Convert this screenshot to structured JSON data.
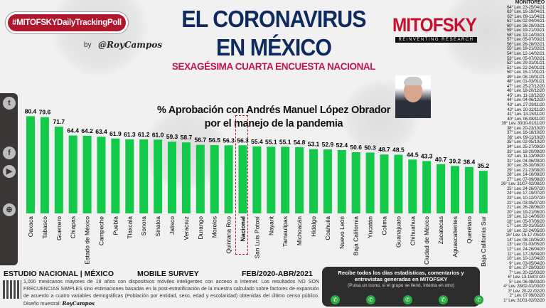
{
  "header": {
    "hashtag": "#MITOFSKYDailyTrackingPoll",
    "by": "by",
    "author": "@RoyCampos",
    "title_line1": "EL CORONAVIRUS",
    "title_line2": "EN MÉXICO",
    "subtitle": "SEXAGÉSIMA CUARTA ENCUESTA NACIONAL",
    "brand": "MITOFSKY",
    "brand_tagline": "REINVENTING RESEARCH"
  },
  "sidebar": {
    "icons": [
      "twitter-icon",
      "facebook-icon",
      "youtube-icon",
      "web-icon"
    ]
  },
  "chart_data": {
    "type": "bar",
    "title_line1": "% Aprobación con Andrés Manuel López Obrador",
    "title_line2": "por el manejo de la pandemia",
    "categories": [
      "Oaxaca",
      "Tabasco",
      "Guerrero",
      "Chiapas",
      "Estado de México",
      "Campeche",
      "Puebla",
      "Tlaxcala",
      "Sonora",
      "Sinaloa",
      "Jalisco",
      "Veracruz",
      "Durango",
      "Morelos",
      "Quintana Roo",
      "Nacional",
      "San Luis Potosí",
      "Nayarit",
      "Tamaulipas",
      "Michoacán",
      "Hidalgo",
      "Coahuila",
      "Nuevo León",
      "Baja California",
      "Yucatán",
      "Colima",
      "Guanajuato",
      "Chihuahua",
      "Ciudad de México",
      "Zacatecas",
      "Aguascalientes",
      "Querétaro",
      "Baja California Sur"
    ],
    "values": [
      80.4,
      79.6,
      71.7,
      64.4,
      64.2,
      63.4,
      61.9,
      61.3,
      61.2,
      61.0,
      59.3,
      58.7,
      56.7,
      56.5,
      56.3,
      56.3,
      55.4,
      55.1,
      55.1,
      54.8,
      53.1,
      52.9,
      52.4,
      50.6,
      50.3,
      48.7,
      48.5,
      44.5,
      43.3,
      40.7,
      39.2,
      38.4,
      35.2
    ],
    "value_labels": [
      "80.4",
      "79.6",
      "71.7",
      "64.4",
      "64.2",
      "63.4",
      "61.9",
      "61.3",
      "61.2",
      "61.0",
      "59.3",
      "58.7",
      "56.7",
      "56.5",
      "56.3",
      "56.3",
      "55.4",
      "55.1",
      "55.1",
      "54.8",
      "53.1",
      "52.9",
      "52.4",
      "50.6",
      "50.3",
      "48.7",
      "48.5",
      "44.5",
      "43.3",
      "40.7",
      "39.2",
      "38.4",
      "35.2"
    ],
    "highlight": "Nacional",
    "bar_color": "#12c94a",
    "highlight_color": "#c0172f",
    "ylim": [
      0,
      85
    ],
    "grid": false
  },
  "monitoreo": {
    "heading": "MONITOREO",
    "highlighted": [
      39,
      26
    ],
    "items": [
      "64° Lev. 23-25/04/21",
      "63° Lev. 16-18/04/21",
      "62° Lev. 09-11/04/21",
      "61° Lev. 02-04/04/21",
      "60° Lev. 26-28/03/21",
      "59° Lev. 19-21/03/21",
      "58° Lev. 12-14/03/21",
      "57° Lev. 05-07/03/21",
      "56° Lev. 26-28/02/21",
      "55° Lev. 19-21/02/21",
      "54° Lev. 12-14/02/21",
      "53° Lev. 05-07/02/21",
      "52° Lev. 29-31/01/21",
      "51° Lev. 22-24/01/21",
      "50° Lev. 15-17/01/21",
      "49° Lev. 08-10/01/21",
      "48° Lev. 01-03/01/21",
      "47° Lev. 25-27/12/20",
      "46° Lev. 18-20/12/20",
      "45° Lev. 11-13/12/20",
      "44° Lev. 04-06/12/20",
      "43° Lev. 27-29/11/20",
      "42° Lev. 20-22/11/20",
      "41° Lev. 13-15/11/20",
      "40° Lev. 06-08/11/20",
      "39° Lev. 30/10-01/11/20",
      "38° Lev. 20-23/10/20",
      "37° Lev. 16-18/10/20",
      "36° Lev. 09-11/10/20",
      "35° Lev. 02-05/10/20",
      "34° Lev. 25-27/09/20",
      "33° Lev. 18-20/09/20",
      "32° Lev. 11-13/09/20",
      "31° Lev. 04-06/09/20",
      "30° Lev. 28-30/08/20",
      "29° Lev. 21-23/08/20",
      "28° Lev. 14-16/08/20",
      "27° Lev. 07-09/08/20",
      "26° Lev. 31/07-02/08/20",
      "25° Lev. 24-26/07/20",
      "24° Lev. 17-19/07/20",
      "23° Lev. 10-12/07/20",
      "22° Lev. 03-05/07/20",
      "21° Lev. 26-28/06/20",
      "20° Lev. 19-21/06/20",
      "19° Lev. 12-14/06/20",
      "18° Lev. 05-07/06/20",
      "17° Lev. 29-31/05/20",
      "16° Lev. 22-24/05/20",
      "15° Lev. 15-17 /05/20",
      "14° Lev. 08-10/05/20",
      "13° Lev. 01-03/05/20",
      "12° Lev. 24-26/04/20",
      "11° Lev. 17-19/04/20",
      "10° Lev. 10-12/04/20",
      "9° Lev. 03-05/04/20",
      "8° Lev. 27-29/03/20",
      "7° Lev. 20-22/03/20",
      "6° Lev. 13-15/03 /20",
      "5° Lev. 06-08/03/20",
      "4° Lev. 28/02-01/03/20",
      "3° Lev. 20-22 /02/20",
      "2° Lev. 07 09/02/20",
      "1° Lev. 31/01-02/02/20"
    ]
  },
  "footer": {
    "study": "ESTUDIO NACIONAL | MÉXICO",
    "mobile": "MOBILE SURVEY",
    "dates": "FEB/2020-ABR/2021",
    "note": "1,000 mexicanos mayores de 18 años con dispositivos móviles inteligentes con acceso a Internet. Los resultados NO SON FRECUENCIAS SIMPLES sino estimaciones basadas en la post-estratificación de la muestra calculado sobre factores de expansión de acuerdo a cuatro variables demográficas (Población por entidad, sexo, edad y escolaridad) obtenidas del último censo público. Diseño muestral:",
    "note_sign": "RoyCampos"
  },
  "promo": {
    "line1": "Recibe todos los días estadísticas, comentarios y entrevistas generadas en",
    "brand": "MITOFSKY",
    "line2": "(Pulsa un icono, si el grupo se llenó, intenta en otro)",
    "buttons": 5
  }
}
